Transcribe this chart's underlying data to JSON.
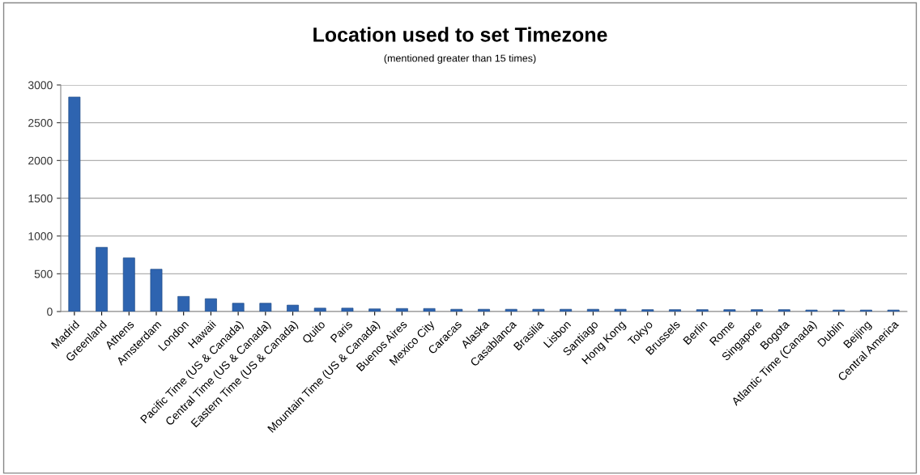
{
  "chart_data": {
    "type": "bar",
    "title": "Location used to set Timezone",
    "subtitle": "(mentioned greater than 15 times)",
    "categories": [
      "Madrid",
      "Greenland",
      "Athens",
      "Amsterdam",
      "London",
      "Hawaii",
      "Pacific Time (US & Canada)",
      "Central Time (US & Canada)",
      "Eastern Time (US & Canada)",
      "Quito",
      "Paris",
      "Mountain Time (US & Canada)",
      "Buenos Aires",
      "Mexico City",
      "Caracas",
      "Alaska",
      "Casablanca",
      "Brasilia",
      "Lisbon",
      "Santiago",
      "Hong Kong",
      "Tokyo",
      "Brussels",
      "Berlin",
      "Rome",
      "Singapore",
      "Bogota",
      "Atlantic Time (Canada)",
      "Dublin",
      "Beijing",
      "Central America"
    ],
    "values": [
      2840,
      850,
      710,
      560,
      200,
      170,
      110,
      110,
      85,
      45,
      45,
      35,
      40,
      40,
      30,
      30,
      30,
      30,
      30,
      30,
      30,
      25,
      25,
      25,
      25,
      25,
      25,
      20,
      20,
      20,
      20
    ],
    "color": "#2e64b0",
    "ylim": [
      0,
      3000
    ],
    "yticks": [
      0,
      500,
      1000,
      1500,
      2000,
      2500,
      3000
    ],
    "grid": "y"
  }
}
